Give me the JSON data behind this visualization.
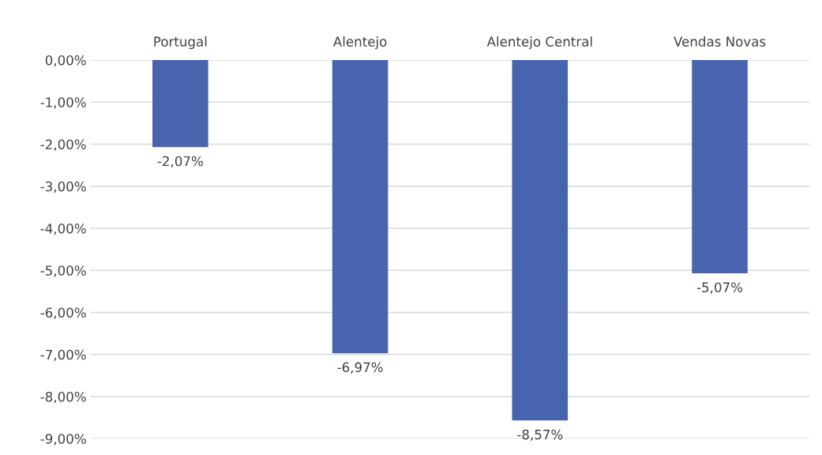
{
  "chart_data": {
    "type": "bar",
    "categories": [
      "Portugal",
      "Alentejo",
      "Alentejo Central",
      "Vendas Novas"
    ],
    "values": [
      -2.07,
      -6.97,
      -8.57,
      -5.07
    ],
    "color": "#4864ae",
    "value_labels": [
      "-2,07%",
      "-6,97%",
      "-8,57%",
      "-5,07%"
    ],
    "ylim": [
      -9,
      0
    ],
    "yticks": [
      {
        "value": 0,
        "label": "0,00%"
      },
      {
        "value": -1,
        "label": "-1,00%"
      },
      {
        "value": -2,
        "label": "-2,00%"
      },
      {
        "value": -3,
        "label": "-3,00%"
      },
      {
        "value": -4,
        "label": "-4,00%"
      },
      {
        "value": -5,
        "label": "-5,00%"
      },
      {
        "value": -6,
        "label": "-6,00%"
      },
      {
        "value": -7,
        "label": "-7,00%"
      },
      {
        "value": -8,
        "label": "-8,00%"
      },
      {
        "value": -9,
        "label": "-9,00%"
      }
    ],
    "grid": "y"
  }
}
